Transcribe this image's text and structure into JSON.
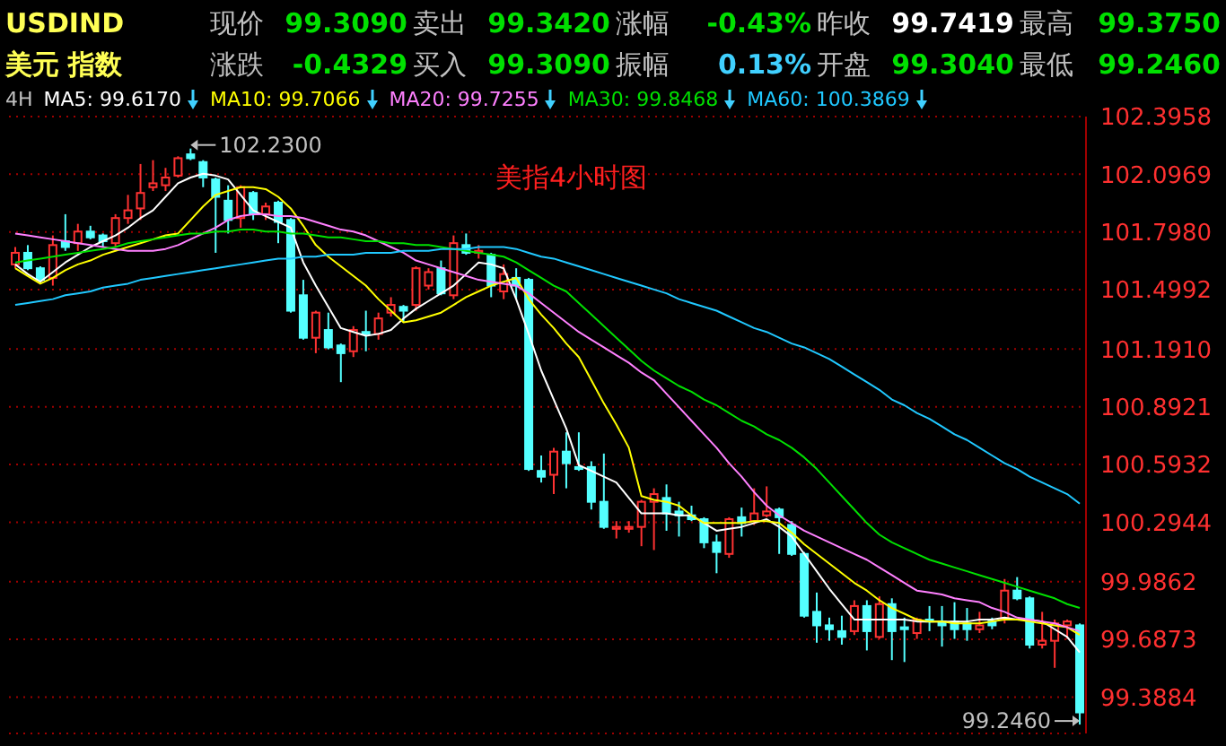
{
  "chart_data": {
    "type": "candlestick",
    "title": "美指4小时图",
    "categories": [
      null,
      null,
      null,
      null,
      null,
      null,
      null,
      null,
      null,
      null,
      null,
      null,
      null,
      null,
      null,
      null,
      null,
      null,
      null,
      null,
      null,
      null,
      null,
      null,
      null,
      null,
      null,
      null,
      null,
      null,
      null,
      null,
      null,
      null,
      null,
      null,
      null,
      null,
      null,
      null,
      null,
      null,
      null,
      null,
      null,
      null,
      null,
      null,
      null,
      null,
      null,
      null,
      null,
      null,
      null,
      null,
      null,
      null,
      null,
      null,
      null,
      null,
      null,
      null,
      null,
      null,
      null,
      null,
      null,
      null,
      null,
      null,
      null,
      null,
      null,
      null,
      null,
      null,
      null,
      null,
      null,
      null,
      null,
      null,
      null,
      null
    ],
    "ohlc": [
      [
        101.63,
        101.72,
        101.61,
        101.69
      ],
      [
        101.69,
        101.73,
        101.6,
        101.61
      ],
      [
        101.61,
        101.62,
        101.54,
        101.55
      ],
      [
        101.56,
        101.78,
        101.52,
        101.73
      ],
      [
        101.75,
        101.89,
        101.7,
        101.72
      ],
      [
        101.74,
        101.84,
        101.7,
        101.8
      ],
      [
        101.8,
        101.83,
        101.76,
        101.77
      ],
      [
        101.78,
        101.79,
        101.72,
        101.75
      ],
      [
        101.74,
        101.89,
        101.72,
        101.87
      ],
      [
        101.87,
        101.99,
        101.84,
        101.91
      ],
      [
        101.92,
        102.15,
        101.86,
        102.0
      ],
      [
        102.03,
        102.17,
        102.01,
        102.05
      ],
      [
        102.04,
        102.13,
        102.01,
        102.08
      ],
      [
        102.09,
        102.19,
        102.08,
        102.18
      ],
      [
        102.2,
        102.23,
        102.17,
        102.18
      ],
      [
        102.16,
        102.17,
        102.03,
        102.08
      ],
      [
        102.07,
        102.08,
        101.69,
        101.98
      ],
      [
        101.96,
        102.04,
        101.79,
        101.86
      ],
      [
        101.87,
        102.04,
        101.82,
        102.03
      ],
      [
        102.0,
        102.01,
        101.86,
        101.89
      ],
      [
        101.89,
        101.95,
        101.86,
        101.93
      ],
      [
        101.95,
        101.96,
        101.74,
        101.85
      ],
      [
        101.86,
        101.87,
        101.38,
        101.39
      ],
      [
        101.47,
        101.55,
        101.24,
        101.25
      ],
      [
        101.25,
        101.39,
        101.17,
        101.38
      ],
      [
        101.29,
        101.38,
        101.19,
        101.2
      ],
      [
        101.21,
        101.22,
        101.02,
        101.17
      ],
      [
        101.18,
        101.31,
        101.15,
        101.29
      ],
      [
        101.28,
        101.39,
        101.18,
        101.27
      ],
      [
        101.27,
        101.38,
        101.24,
        101.35
      ],
      [
        101.38,
        101.46,
        101.36,
        101.42
      ],
      [
        101.41,
        101.42,
        101.33,
        101.39
      ],
      [
        101.42,
        101.62,
        101.39,
        101.61
      ],
      [
        101.52,
        101.61,
        101.5,
        101.59
      ],
      [
        101.61,
        101.65,
        101.47,
        101.48
      ],
      [
        101.47,
        101.78,
        101.45,
        101.74
      ],
      [
        101.73,
        101.79,
        101.68,
        101.69
      ],
      [
        101.69,
        101.73,
        101.66,
        101.7
      ],
      [
        101.68,
        101.69,
        101.46,
        101.52
      ],
      [
        101.49,
        101.63,
        101.45,
        101.58
      ],
      [
        101.56,
        101.61,
        101.45,
        101.52
      ],
      [
        101.55,
        101.56,
        100.56,
        100.57
      ],
      [
        100.56,
        100.64,
        100.5,
        100.53
      ],
      [
        100.54,
        100.68,
        100.44,
        100.66
      ],
      [
        100.66,
        100.76,
        100.47,
        100.6
      ],
      [
        100.58,
        100.76,
        100.56,
        100.57
      ],
      [
        100.58,
        100.61,
        100.36,
        100.4
      ],
      [
        100.4,
        100.65,
        100.26,
        100.27
      ],
      [
        100.26,
        100.3,
        100.21,
        100.27
      ],
      [
        100.26,
        100.3,
        100.24,
        100.27
      ],
      [
        100.27,
        100.41,
        100.17,
        100.4
      ],
      [
        100.4,
        100.47,
        100.15,
        100.44
      ],
      [
        100.42,
        100.49,
        100.25,
        100.34
      ],
      [
        100.35,
        100.4,
        100.22,
        100.33
      ],
      [
        100.33,
        100.38,
        100.3,
        100.31
      ],
      [
        100.31,
        100.32,
        100.16,
        100.19
      ],
      [
        100.19,
        100.23,
        100.03,
        100.14
      ],
      [
        100.13,
        100.32,
        100.11,
        100.31
      ],
      [
        100.32,
        100.37,
        100.22,
        100.29
      ],
      [
        100.3,
        100.47,
        100.28,
        100.34
      ],
      [
        100.33,
        100.48,
        100.32,
        100.35
      ],
      [
        100.36,
        100.37,
        100.13,
        100.32
      ],
      [
        100.28,
        100.3,
        100.12,
        100.13
      ],
      [
        100.13,
        100.14,
        99.8,
        99.81
      ],
      [
        99.83,
        99.93,
        99.67,
        99.76
      ],
      [
        99.76,
        99.8,
        99.68,
        99.74
      ],
      [
        99.73,
        99.81,
        99.66,
        99.7
      ],
      [
        99.73,
        99.89,
        99.71,
        99.86
      ],
      [
        99.86,
        99.89,
        99.63,
        99.73
      ],
      [
        99.7,
        99.91,
        99.69,
        99.87
      ],
      [
        99.87,
        99.9,
        99.58,
        99.73
      ],
      [
        99.75,
        99.8,
        99.57,
        99.74
      ],
      [
        99.72,
        99.8,
        99.69,
        99.79
      ],
      [
        99.79,
        99.86,
        99.73,
        99.78
      ],
      [
        99.78,
        99.86,
        99.65,
        99.76
      ],
      [
        99.78,
        99.88,
        99.69,
        99.74
      ],
      [
        99.77,
        99.85,
        99.68,
        99.74
      ],
      [
        99.74,
        99.83,
        99.72,
        99.76
      ],
      [
        99.78,
        99.8,
        99.74,
        99.76
      ],
      [
        99.79,
        100.0,
        99.77,
        99.94
      ],
      [
        99.94,
        100.01,
        99.89,
        99.9
      ],
      [
        99.9,
        99.91,
        99.64,
        99.66
      ],
      [
        99.66,
        99.83,
        99.64,
        99.68
      ],
      [
        99.68,
        99.79,
        99.54,
        99.77
      ],
      [
        99.76,
        99.79,
        99.69,
        99.78
      ],
      [
        99.76,
        99.77,
        99.246,
        99.309
      ]
    ],
    "series": [
      {
        "type": "line",
        "name": "MA5: 99.6170",
        "color": "#ffffff",
        "values": [
          101.63,
          101.58,
          101.54,
          101.59,
          101.64,
          101.68,
          101.72,
          101.75,
          101.78,
          101.82,
          101.87,
          101.91,
          101.98,
          102.05,
          102.08,
          102.1,
          102.09,
          102.07,
          101.99,
          101.91,
          101.88,
          101.85,
          101.82,
          101.64,
          101.52,
          101.41,
          101.3,
          101.28,
          101.26,
          101.27,
          101.29,
          101.35,
          101.4,
          101.44,
          101.48,
          101.52,
          101.58,
          101.64,
          101.63,
          101.61,
          101.45,
          101.27,
          101.08,
          100.93,
          100.78,
          100.59,
          100.56,
          100.53,
          100.5,
          100.42,
          100.34,
          100.34,
          100.34,
          100.33,
          100.33,
          100.29,
          100.25,
          100.26,
          100.27,
          100.29,
          100.31,
          100.27,
          100.22,
          100.13,
          100.04,
          99.95,
          99.87,
          99.79,
          99.79,
          99.79,
          99.79,
          99.79,
          99.78,
          99.78,
          99.78,
          99.78,
          99.78,
          99.79,
          99.79,
          99.8,
          99.79,
          99.79,
          99.78,
          99.74,
          99.7,
          99.62
        ]
      },
      {
        "type": "line",
        "name": "MA10: 99.7066",
        "color": "#ffff00",
        "values": [
          101.61,
          101.57,
          101.53,
          101.56,
          101.6,
          101.63,
          101.65,
          101.68,
          101.7,
          101.72,
          101.74,
          101.76,
          101.78,
          101.79,
          101.86,
          101.93,
          101.99,
          102.01,
          102.03,
          102.03,
          102.02,
          101.98,
          101.92,
          101.83,
          101.73,
          101.67,
          101.62,
          101.57,
          101.52,
          101.45,
          101.39,
          101.33,
          101.34,
          101.36,
          101.38,
          101.42,
          101.46,
          101.49,
          101.52,
          101.54,
          101.56,
          101.45,
          101.37,
          101.3,
          101.22,
          101.15,
          101.03,
          100.91,
          100.8,
          100.68,
          100.43,
          100.41,
          100.4,
          100.38,
          100.33,
          100.29,
          100.29,
          100.29,
          100.29,
          100.3,
          100.3,
          100.29,
          100.24,
          100.18,
          100.13,
          100.08,
          100.03,
          99.98,
          99.94,
          99.89,
          99.85,
          99.82,
          99.79,
          99.78,
          99.78,
          99.77,
          99.77,
          99.77,
          99.78,
          99.79,
          99.79,
          99.78,
          99.77,
          99.76,
          99.75,
          99.71
        ]
      },
      {
        "type": "line",
        "name": "MA20: 99.7255",
        "color": "#ff80ff",
        "values": [
          101.79,
          101.78,
          101.77,
          101.76,
          101.75,
          101.74,
          101.73,
          101.72,
          101.71,
          101.7,
          101.7,
          101.7,
          101.71,
          101.73,
          101.76,
          101.79,
          101.82,
          101.86,
          101.88,
          101.89,
          101.89,
          101.88,
          101.88,
          101.87,
          101.85,
          101.83,
          101.81,
          101.8,
          101.78,
          101.75,
          101.72,
          101.69,
          101.65,
          101.63,
          101.61,
          101.59,
          101.57,
          101.55,
          101.54,
          101.53,
          101.52,
          101.48,
          101.43,
          101.38,
          101.33,
          101.28,
          101.24,
          101.2,
          101.16,
          101.12,
          101.07,
          101.03,
          100.96,
          100.89,
          100.82,
          100.75,
          100.68,
          100.6,
          100.53,
          100.45,
          100.38,
          100.33,
          100.29,
          100.25,
          100.22,
          100.19,
          100.16,
          100.13,
          100.1,
          100.06,
          100.02,
          99.98,
          99.94,
          99.93,
          99.92,
          99.9,
          99.89,
          99.88,
          99.85,
          99.83,
          99.8,
          99.79,
          99.78,
          99.77,
          99.75,
          99.73
        ]
      },
      {
        "type": "line",
        "name": "MA30: 99.8468",
        "color": "#00e000",
        "values": [
          101.64,
          101.65,
          101.66,
          101.67,
          101.68,
          101.69,
          101.7,
          101.71,
          101.72,
          101.74,
          101.75,
          101.76,
          101.77,
          101.78,
          101.79,
          101.79,
          101.8,
          101.8,
          101.81,
          101.81,
          101.8,
          101.8,
          101.79,
          101.79,
          101.78,
          101.77,
          101.77,
          101.76,
          101.75,
          101.75,
          101.74,
          101.74,
          101.73,
          101.73,
          101.72,
          101.71,
          101.7,
          101.69,
          101.68,
          101.67,
          101.64,
          101.6,
          101.56,
          101.52,
          101.49,
          101.43,
          101.37,
          101.31,
          101.25,
          101.19,
          101.13,
          101.08,
          101.04,
          101.0,
          100.97,
          100.93,
          100.9,
          100.86,
          100.82,
          100.79,
          100.75,
          100.72,
          100.68,
          100.63,
          100.57,
          100.5,
          100.43,
          100.36,
          100.29,
          100.23,
          100.19,
          100.16,
          100.13,
          100.1,
          100.08,
          100.06,
          100.04,
          100.02,
          100.0,
          99.98,
          99.96,
          99.94,
          99.92,
          99.9,
          99.87,
          99.85
        ]
      },
      {
        "type": "line",
        "name": "MA60: 100.3869",
        "color": "#20c8ff",
        "values": [
          101.42,
          101.43,
          101.44,
          101.45,
          101.47,
          101.48,
          101.49,
          101.51,
          101.52,
          101.53,
          101.55,
          101.56,
          101.57,
          101.58,
          101.59,
          101.6,
          101.61,
          101.62,
          101.63,
          101.64,
          101.65,
          101.66,
          101.66,
          101.67,
          101.67,
          101.68,
          101.68,
          101.68,
          101.69,
          101.69,
          101.69,
          101.7,
          101.7,
          101.7,
          101.71,
          101.71,
          101.71,
          101.72,
          101.72,
          101.72,
          101.71,
          101.69,
          101.67,
          101.66,
          101.64,
          101.62,
          101.6,
          101.58,
          101.56,
          101.54,
          101.52,
          101.5,
          101.48,
          101.45,
          101.43,
          101.41,
          101.39,
          101.36,
          101.33,
          101.3,
          101.28,
          101.25,
          101.22,
          101.2,
          101.17,
          101.14,
          101.1,
          101.06,
          101.02,
          100.98,
          100.93,
          100.9,
          100.86,
          100.83,
          100.79,
          100.75,
          100.72,
          100.68,
          100.64,
          100.6,
          100.57,
          100.53,
          100.5,
          100.47,
          100.44,
          100.39
        ]
      }
    ],
    "ylim": [
      99.2,
      102.3958
    ],
    "yticks": [
      102.3958,
      102.0969,
      {
        "value": 101.798,
        "label": "101.7980"
      },
      101.4992,
      {
        "value": 101.191,
        "label": "101.1910"
      },
      100.8921,
      100.5932,
      100.2944,
      99.9862,
      99.6873,
      99.3884
    ],
    "grid": "y",
    "legend": "top left",
    "tick_labels": "y",
    "annotations": [
      "USDIND",
      "现价",
      "99.3090",
      "卖出",
      "99.3420",
      "涨幅",
      "-0.43%",
      "昨收",
      "99.7419",
      "最高",
      "99.3750",
      "美元 指数",
      "涨跌",
      "-0.4329",
      "买入",
      "99.3090",
      "振幅",
      "0.13%",
      "开盘",
      "99.3040",
      "最低",
      "99.2460",
      "4H",
      "102.2300",
      "99.2460"
    ]
  }
}
